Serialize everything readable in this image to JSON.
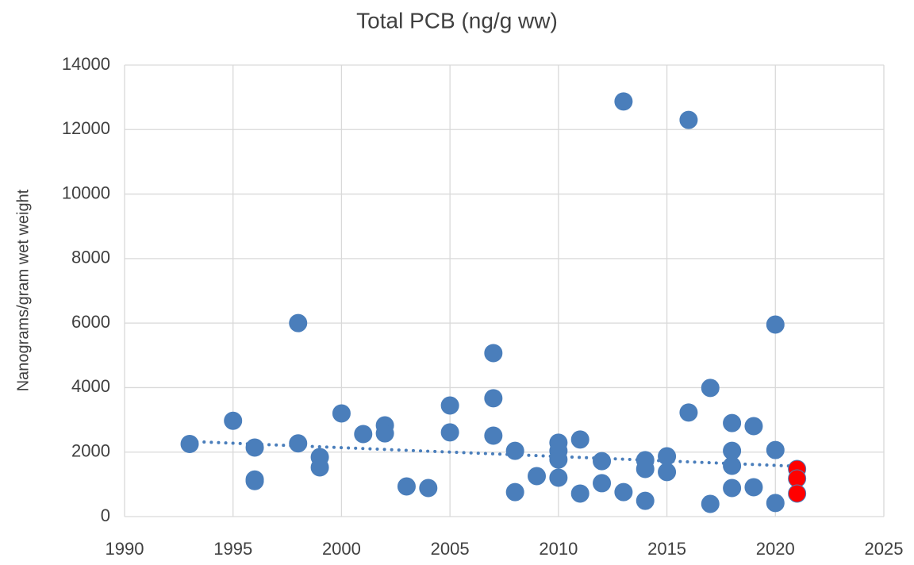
{
  "chart_data": {
    "type": "scatter",
    "title": "Total PCB (ng/g ww)",
    "y_label": "Nanograms/gram wet weight",
    "xlim": [
      1990,
      2025
    ],
    "xticks": [
      1990,
      1995,
      2000,
      2005,
      2010,
      2015,
      2020,
      2025
    ],
    "ylim": [
      0,
      14000
    ],
    "yticks": [
      0,
      2000,
      4000,
      6000,
      8000,
      10000,
      12000,
      14000
    ],
    "grid": true,
    "series": [
      {
        "color": "#4a7ebb",
        "x": [
          1993,
          1995,
          1996,
          1996,
          1996,
          1998,
          1998,
          1999,
          1999,
          2000,
          2001,
          2002,
          2002,
          2003,
          2004,
          2005,
          2005,
          2007,
          2007,
          2007,
          2008,
          2008,
          2009,
          2010,
          2010,
          2010,
          2010,
          2011,
          2011,
          2012,
          2012,
          2013,
          2013,
          2014,
          2014,
          2014,
          2015,
          2015,
          2016,
          2016,
          2017,
          2017,
          2018,
          2018,
          2018,
          2018,
          2019,
          2019,
          2020,
          2020,
          2020
        ],
        "values": [
          2250,
          2970,
          2140,
          1150,
          1100,
          6000,
          2270,
          1845,
          1525,
          3200,
          2560,
          2830,
          2580,
          935,
          885,
          3445,
          2610,
          5070,
          3670,
          2510,
          2040,
          760,
          1255,
          2290,
          2040,
          1770,
          1205,
          2390,
          715,
          1720,
          1035,
          12870,
          760,
          1750,
          1475,
          490,
          1870,
          1380,
          12300,
          3225,
          3990,
          395,
          2900,
          2040,
          1575,
          885,
          2805,
          910,
          5955,
          2065,
          420
        ]
      },
      {
        "color": "#ff0000",
        "x": [
          2021,
          2021,
          2021
        ],
        "values": [
          1475,
          1180,
          715
        ]
      }
    ],
    "trendline": {
      "color": "#4a7ebb",
      "x": [
        1993,
        2021
      ],
      "values": [
        2330,
        1560
      ]
    }
  }
}
